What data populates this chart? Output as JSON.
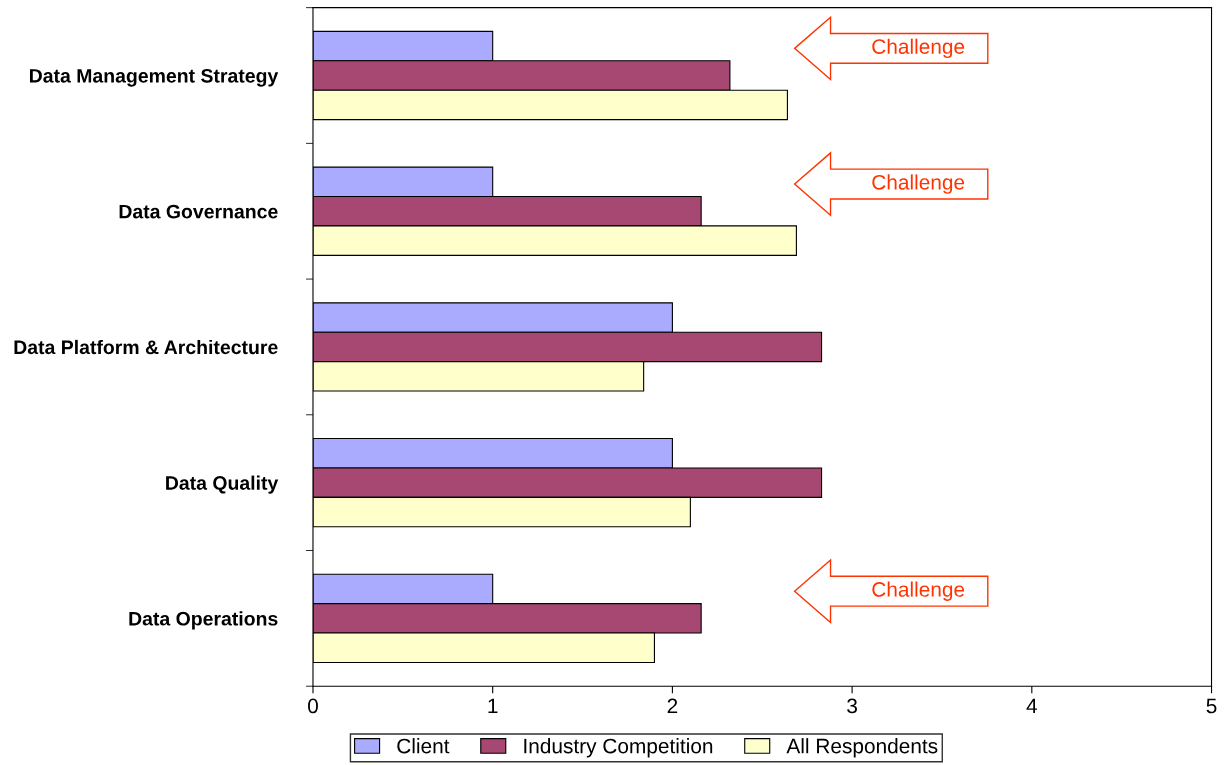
{
  "chart_data": {
    "type": "bar",
    "orientation": "horizontal",
    "categories": [
      "Data Management Strategy",
      "Data Governance",
      "Data Platform & Architecture",
      "Data Quality",
      "Data Operations"
    ],
    "series": [
      {
        "name": "Client",
        "color": "#aaaaff",
        "values": [
          1.0,
          1.0,
          2.0,
          2.0,
          1.0
        ]
      },
      {
        "name": "Industry Competition",
        "color": "#a64872",
        "values": [
          2.32,
          2.16,
          2.83,
          2.83,
          2.16
        ]
      },
      {
        "name": "All Respondents",
        "color": "#ffffcc",
        "values": [
          2.64,
          2.69,
          1.84,
          2.1,
          1.9
        ]
      }
    ],
    "xlim": [
      0,
      5
    ],
    "xticks": [
      0,
      1,
      2,
      3,
      4,
      5
    ],
    "grid": false,
    "legend": "bottom",
    "annotations": [
      "Challenge",
      "Challenge",
      "Challenge"
    ]
  }
}
